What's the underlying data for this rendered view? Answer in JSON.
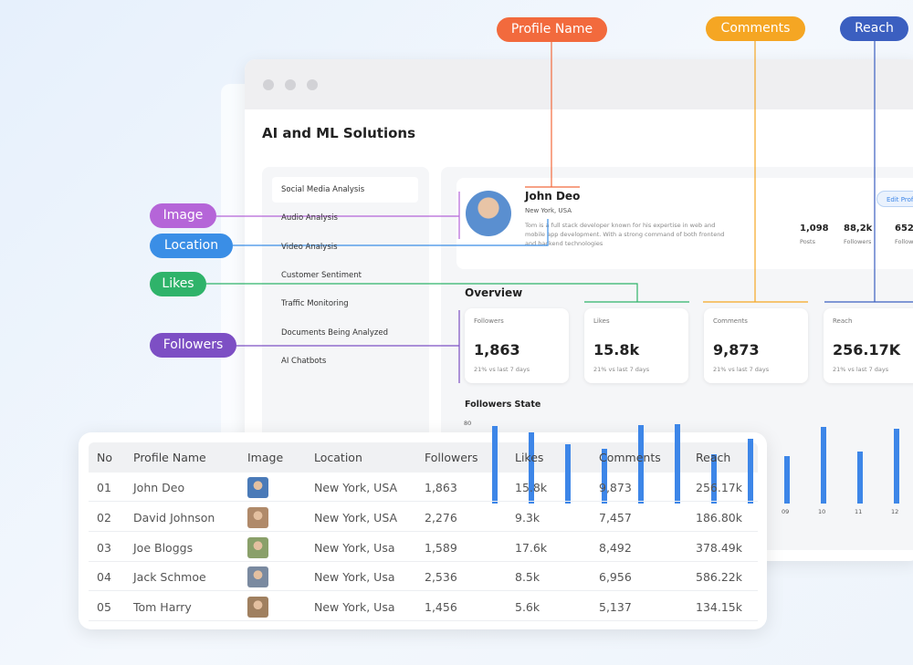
{
  "callouts": {
    "profile_name": "Profile Name",
    "comments": "Comments",
    "reach": "Reach",
    "image": "Image",
    "location": "Location",
    "likes": "Likes",
    "followers": "Followers"
  },
  "window": {
    "title": "AI and ML Solutions"
  },
  "sidebar": [
    "Social Media Analysis",
    "Audio Analysis",
    "Video Analysis",
    "Customer Sentiment",
    "Traffic Monitoring",
    "Documents Being Analyzed",
    "AI Chatbots"
  ],
  "profile": {
    "name": "John Deo",
    "location": "New York, USA",
    "bio": "Tom is a full stack developer known for his expertise in web and mobile app development. With a strong command of both frontend and backend technologies",
    "button": "Edit Profile",
    "stats": [
      {
        "value": "1,098",
        "label": "Posts"
      },
      {
        "value": "88,2k",
        "label": "Followers"
      },
      {
        "value": "652",
        "label": "Following"
      }
    ]
  },
  "overview": {
    "title": "Overview",
    "cards": [
      {
        "label": "Followers",
        "value": "1,863",
        "change": "21% vs last 7 days"
      },
      {
        "label": "Likes",
        "value": "15.8k",
        "change": "21% vs last 7 days"
      },
      {
        "label": "Comments",
        "value": "9,873",
        "change": "21% vs last 7 days"
      },
      {
        "label": "Reach",
        "value": "256.17K",
        "change": "21% vs last 7 days"
      }
    ]
  },
  "chart_data": {
    "type": "bar",
    "title": "Followers State",
    "categories": [
      null,
      null,
      null,
      null,
      null,
      null,
      null,
      null,
      "09",
      "10",
      "11",
      "12"
    ],
    "values": [
      78,
      72,
      60,
      55,
      79,
      80,
      50,
      65,
      48,
      77,
      52,
      75
    ],
    "color": "#3d86e8",
    "ylim": [
      0,
      80
    ],
    "yticks": [
      80
    ]
  },
  "table": {
    "headers": [
      "No",
      "Profile Name",
      "Image",
      "Location",
      "Followers",
      "Likes",
      "Comments",
      "Reach"
    ],
    "rows": [
      [
        "01",
        "John Deo",
        "New York, USA",
        "1,863",
        "15.8k",
        "9,873",
        "256.17k"
      ],
      [
        "02",
        "David Johnson",
        "New York, USA",
        "2,276",
        "9.3k",
        "7,457",
        "186.80k"
      ],
      [
        "03",
        "Joe Bloggs",
        "New York, Usa",
        "1,589",
        "17.6k",
        "8,492",
        "378.49k"
      ],
      [
        "04",
        "Jack Schmoe",
        "New York, Usa",
        "2,536",
        "8.5k",
        "6,956",
        "586.22k"
      ],
      [
        "05",
        "Tom Harry",
        "New York, Usa",
        "1,456",
        "5.6k",
        "5,137",
        "134.15k"
      ]
    ]
  }
}
